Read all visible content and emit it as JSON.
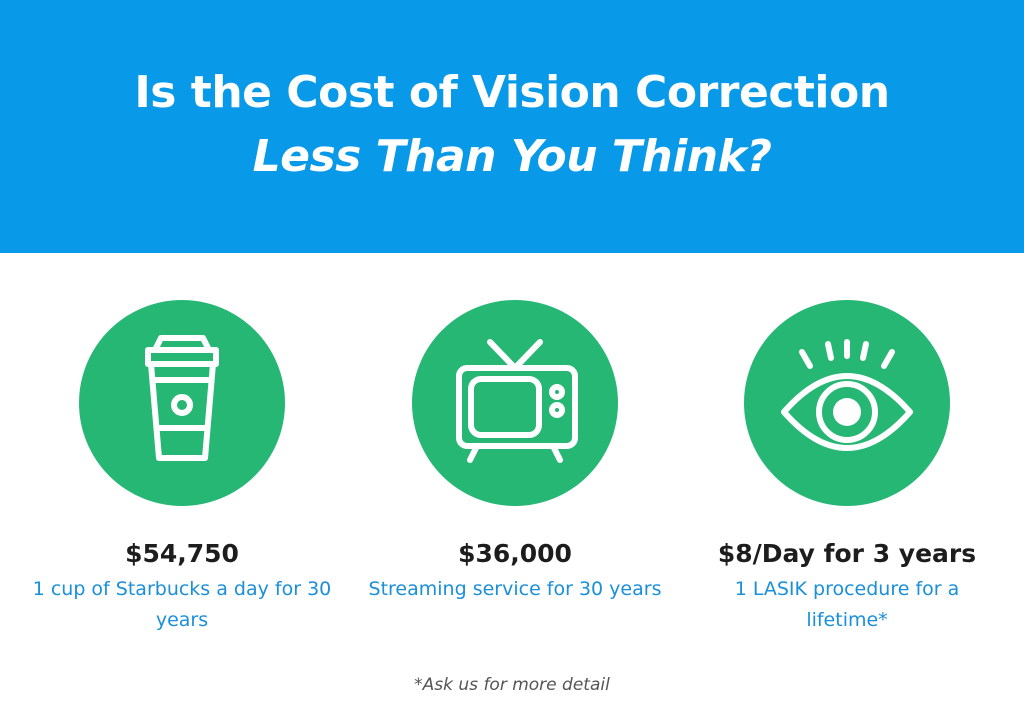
{
  "header": {
    "title_line1": "Is the Cost of Vision Correction",
    "title_line2": "Less Than You Think?",
    "background_color": "#0899e8"
  },
  "cards": [
    {
      "icon": "coffee-cup-icon",
      "price": "$54,750",
      "description": "1 cup of Starbucks a day for 30 years"
    },
    {
      "icon": "television-icon",
      "price": "$36,000",
      "description": "Streaming service for 30 years"
    },
    {
      "icon": "eye-icon",
      "price": "$8/Day for 3 years",
      "description": "1 LASIK procedure for a lifetime*"
    }
  ],
  "colors": {
    "icon_circle": "#27b775",
    "price_text": "#1d1d1d",
    "description_text": "#1a8fdb"
  },
  "footnote": "*Ask us for more detail"
}
